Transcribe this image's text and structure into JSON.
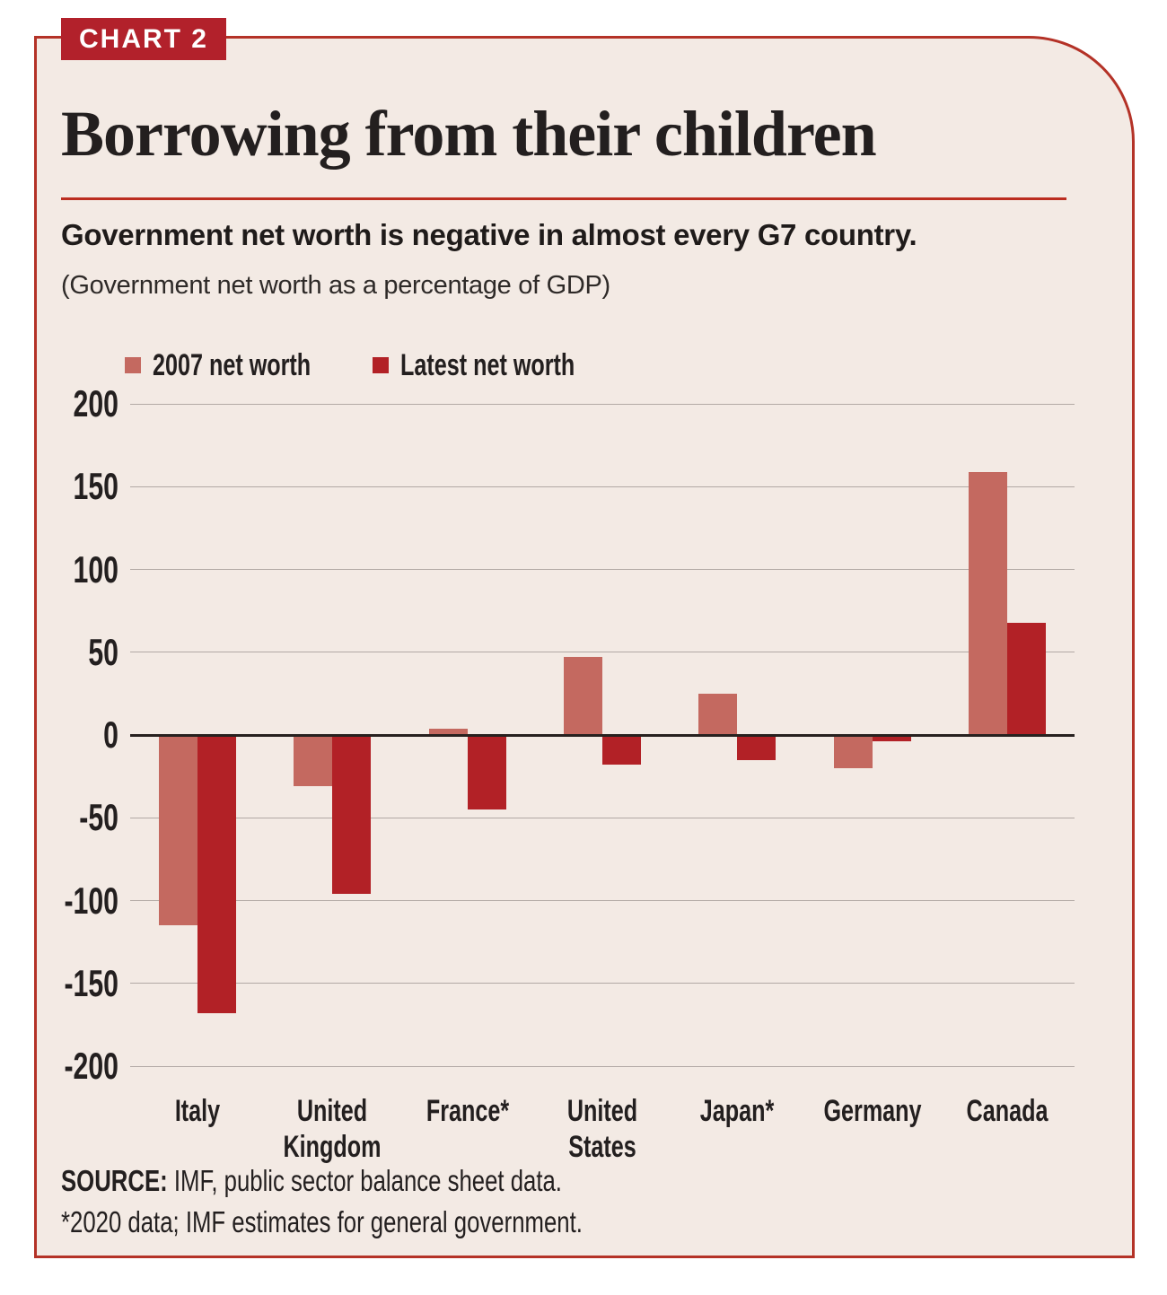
{
  "badge": {
    "label": "CHART 2"
  },
  "header": {
    "title": "Borrowing from their children",
    "subtitle": "Government net worth is negative in almost every G7 country.",
    "unit_note": "(Government net worth as a percentage of GDP)"
  },
  "chart_data": {
    "type": "bar",
    "title": "Borrowing from their children",
    "subtitle": "Government net worth is negative in almost every G7 country.",
    "unit": "Government net worth as a percentage of GDP",
    "categories": [
      "Italy",
      "United Kingdom",
      "France*",
      "United States",
      "Japan*",
      "Germany",
      "Canada"
    ],
    "category_lines": [
      [
        "Italy"
      ],
      [
        "United",
        "Kingdom"
      ],
      [
        "France*"
      ],
      [
        "United",
        "States"
      ],
      [
        "Japan*"
      ],
      [
        "Germany"
      ],
      [
        "Canada"
      ]
    ],
    "series": [
      {
        "name": "2007 net worth",
        "color": "#c46960",
        "values": [
          -115,
          -31,
          4,
          47,
          25,
          -20,
          159
        ]
      },
      {
        "name": "Latest net worth",
        "color": "#b22126",
        "values": [
          -168,
          -96,
          -45,
          -18,
          -15,
          -4,
          68
        ]
      }
    ],
    "ylim": [
      -200,
      200
    ],
    "yticks": [
      200,
      150,
      100,
      50,
      0,
      -50,
      -100,
      -150,
      -200
    ],
    "grid": true,
    "legend_position": "top-left"
  },
  "footer": {
    "source_label": "SOURCE:",
    "source_text": " IMF, public sector balance sheet data.",
    "footnote": "*2020 data; IMF estimates for general government."
  },
  "colors": {
    "page_background": "#ffffff",
    "card_background": "#f3eae4",
    "card_border": "#b43227",
    "badge_background": "#b2212b",
    "badge_text": "#ffffff",
    "title_rule": "#bb2d20",
    "series_2007": "#c46960",
    "series_latest": "#b22126",
    "gridline": "#b2a9a5",
    "zero_line": "#27211f",
    "text": "#231f1f"
  }
}
